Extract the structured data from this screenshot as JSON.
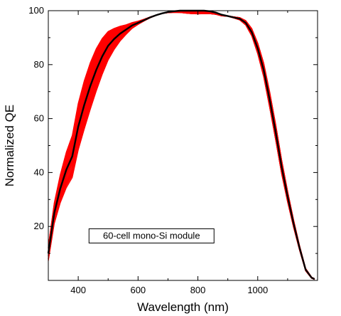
{
  "chart_data": {
    "type": "line",
    "title": "",
    "xlabel": "Wavelength (nm)",
    "ylabel": "Normalized QE",
    "xlim": [
      300,
      1200
    ],
    "ylim": [
      0,
      100
    ],
    "x_ticks": [
      400,
      600,
      800,
      1000
    ],
    "y_ticks": [
      20,
      40,
      60,
      80,
      100
    ],
    "grid": false,
    "legend": "none",
    "annotation": "60-cell mono-Si module",
    "colors": {
      "cells": "#ff0000",
      "module": "#000000"
    },
    "series": [
      {
        "role": "module-average",
        "x": [
          300,
          320,
          340,
          360,
          380,
          400,
          420,
          440,
          460,
          480,
          500,
          520,
          540,
          560,
          580,
          600,
          620,
          640,
          660,
          680,
          700,
          720,
          740,
          760,
          780,
          800,
          820,
          840,
          860,
          880,
          900,
          920,
          940,
          960,
          980,
          1000,
          1020,
          1040,
          1060,
          1080,
          1100,
          1120,
          1140,
          1160,
          1180,
          1190
        ],
        "values": [
          10,
          25,
          34,
          41,
          46,
          57,
          65,
          72,
          78,
          83,
          87,
          89.5,
          91.5,
          93,
          94.5,
          95.5,
          96.5,
          97.5,
          98.3,
          99,
          99.5,
          99.8,
          100,
          100,
          100,
          100,
          100,
          99.8,
          99.3,
          98.5,
          98,
          97.5,
          97,
          95.5,
          92,
          86,
          78,
          67,
          55,
          42,
          31,
          21,
          12,
          4,
          1,
          0.5
        ]
      },
      {
        "role": "cells",
        "count": 60
      }
    ]
  }
}
